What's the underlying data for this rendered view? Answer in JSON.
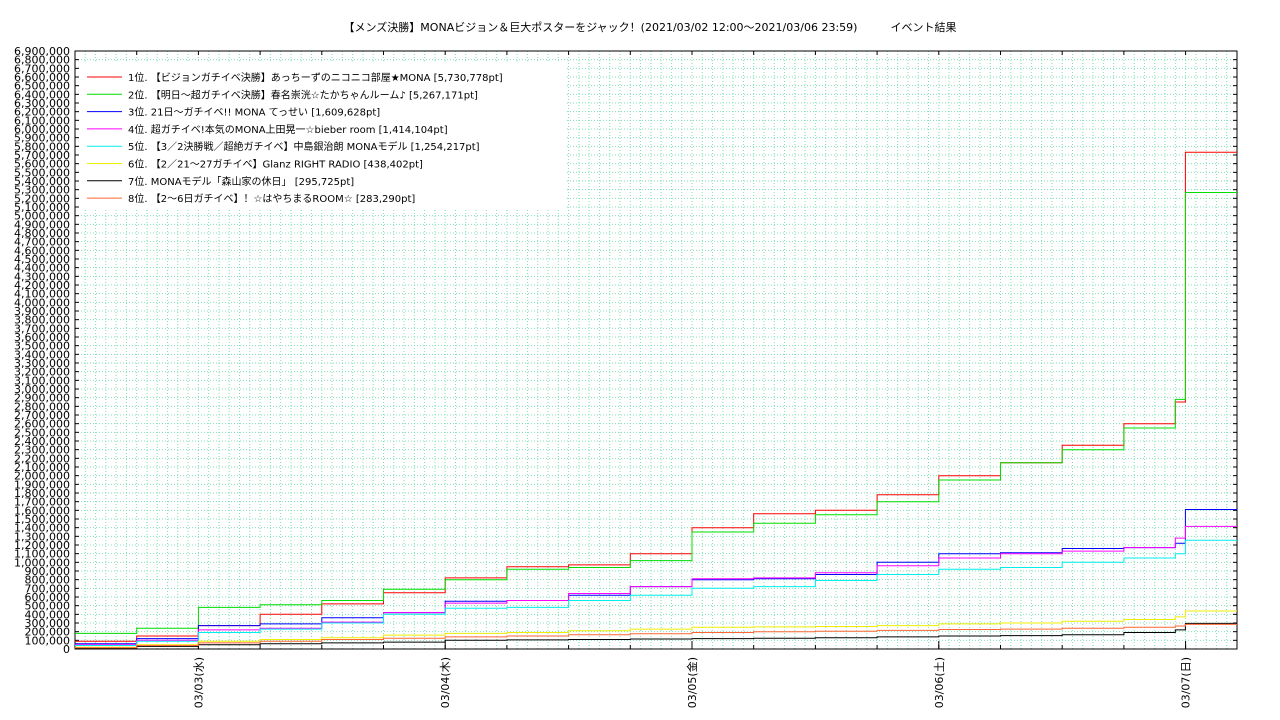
{
  "chart_data": {
    "type": "line",
    "title": "【メンズ決勝】MONAビジョン＆巨大ポスターをジャック！(2021/03/02 12:00〜2021/03/06 23:59)　　　イベント結果",
    "xlabel": "",
    "ylabel": "",
    "x_range": [
      "2021/03/02 12:00",
      "2021/03/07 05:00"
    ],
    "ylim": [
      0,
      6900000
    ],
    "y_ticks": [
      "0",
      "100,000",
      "200,000",
      "300,000",
      "400,000",
      "500,000",
      "600,000",
      "700,000",
      "800,000",
      "900,000",
      "1,000,000",
      "1,100,000",
      "1,200,000",
      "1,300,000",
      "1,400,000",
      "1,500,000",
      "1,600,000",
      "1,700,000",
      "1,800,000",
      "1,900,000",
      "2,000,000",
      "2,100,000",
      "2,200,000",
      "2,300,000",
      "2,400,000",
      "2,500,000",
      "2,600,000",
      "2,700,000",
      "2,800,000",
      "2,900,000",
      "3,000,000",
      "3,100,000",
      "3,200,000",
      "3,300,000",
      "3,400,000",
      "3,500,000",
      "3,600,000",
      "3,700,000",
      "3,800,000",
      "3,900,000",
      "4,000,000",
      "4,100,000",
      "4,200,000",
      "4,300,000",
      "4,400,000",
      "4,500,000",
      "4,600,000",
      "4,700,000",
      "4,800,000",
      "4,900,000",
      "5,000,000",
      "5,100,000",
      "5,200,000",
      "5,300,000",
      "5,400,000",
      "5,500,000",
      "5,600,000",
      "5,700,000",
      "5,800,000",
      "5,900,000",
      "6,000,000",
      "6,100,000",
      "6,200,000",
      "6,300,000",
      "6,400,000",
      "6,500,000",
      "6,600,000",
      "6,700,000",
      "6,800,000",
      "6,900,000"
    ],
    "x_ticks": [
      {
        "label": "03/03(水)",
        "x": "2021/03/03 00:00"
      },
      {
        "label": "03/04(木)",
        "x": "2021/03/04 00:00"
      },
      {
        "label": "03/05(金)",
        "x": "2021/03/05 00:00"
      },
      {
        "label": "03/06(土)",
        "x": "2021/03/06 00:00"
      },
      {
        "label": "03/07(日)",
        "x": "2021/03/07 00:00"
      }
    ],
    "grid": true,
    "legend_position": "top-left",
    "series": [
      {
        "name": "1位. 【ビジョンガチイベ決勝】あっちーずのニコニコ部屋★MONA [5,730,778pt]",
        "color": "#ff0000",
        "points": [
          [
            "2021/03/02 12:00",
            90000
          ],
          [
            "2021/03/02 18:00",
            150000
          ],
          [
            "2021/03/03 00:00",
            270000
          ],
          [
            "2021/03/03 06:00",
            400000
          ],
          [
            "2021/03/03 12:00",
            520000
          ],
          [
            "2021/03/03 18:00",
            650000
          ],
          [
            "2021/03/04 00:00",
            820000
          ],
          [
            "2021/03/04 06:00",
            950000
          ],
          [
            "2021/03/04 12:00",
            970000
          ],
          [
            "2021/03/04 18:00",
            1100000
          ],
          [
            "2021/03/05 00:00",
            1400000
          ],
          [
            "2021/03/05 06:00",
            1560000
          ],
          [
            "2021/03/05 12:00",
            1600000
          ],
          [
            "2021/03/05 18:00",
            1780000
          ],
          [
            "2021/03/06 00:00",
            2000000
          ],
          [
            "2021/03/06 06:00",
            2150000
          ],
          [
            "2021/03/06 12:00",
            2350000
          ],
          [
            "2021/03/06 18:00",
            2600000
          ],
          [
            "2021/03/06 23:00",
            2850000
          ],
          [
            "2021/03/06 23:59",
            5730778
          ],
          [
            "2021/03/07 05:00",
            5730778
          ]
        ]
      },
      {
        "name": "2位. 【明日〜超ガチイベ決勝】春名崇洸☆たかちゃんルーム♪ [5,267,171pt]",
        "color": "#00dd00",
        "points": [
          [
            "2021/03/02 12:00",
            180000
          ],
          [
            "2021/03/02 18:00",
            240000
          ],
          [
            "2021/03/03 00:00",
            480000
          ],
          [
            "2021/03/03 06:00",
            510000
          ],
          [
            "2021/03/03 12:00",
            560000
          ],
          [
            "2021/03/03 18:00",
            690000
          ],
          [
            "2021/03/04 00:00",
            800000
          ],
          [
            "2021/03/04 06:00",
            920000
          ],
          [
            "2021/03/04 12:00",
            940000
          ],
          [
            "2021/03/04 18:00",
            1020000
          ],
          [
            "2021/03/05 00:00",
            1350000
          ],
          [
            "2021/03/05 06:00",
            1450000
          ],
          [
            "2021/03/05 12:00",
            1550000
          ],
          [
            "2021/03/05 18:00",
            1700000
          ],
          [
            "2021/03/06 00:00",
            1950000
          ],
          [
            "2021/03/06 06:00",
            2150000
          ],
          [
            "2021/03/06 12:00",
            2300000
          ],
          [
            "2021/03/06 18:00",
            2550000
          ],
          [
            "2021/03/06 23:00",
            2880000
          ],
          [
            "2021/03/06 23:59",
            5267171
          ],
          [
            "2021/03/07 05:00",
            5267171
          ]
        ]
      },
      {
        "name": "3位. 21日〜ガチイベ!! MONA てっせい [1,609,628pt]",
        "color": "#0000ff",
        "points": [
          [
            "2021/03/02 12:00",
            60000
          ],
          [
            "2021/03/02 18:00",
            120000
          ],
          [
            "2021/03/03 00:00",
            270000
          ],
          [
            "2021/03/03 06:00",
            290000
          ],
          [
            "2021/03/03 12:00",
            360000
          ],
          [
            "2021/03/03 18:00",
            420000
          ],
          [
            "2021/03/04 00:00",
            550000
          ],
          [
            "2021/03/04 06:00",
            560000
          ],
          [
            "2021/03/04 12:00",
            620000
          ],
          [
            "2021/03/04 18:00",
            720000
          ],
          [
            "2021/03/05 00:00",
            800000
          ],
          [
            "2021/03/05 06:00",
            810000
          ],
          [
            "2021/03/05 12:00",
            860000
          ],
          [
            "2021/03/05 18:00",
            1000000
          ],
          [
            "2021/03/06 00:00",
            1100000
          ],
          [
            "2021/03/06 06:00",
            1110000
          ],
          [
            "2021/03/06 12:00",
            1160000
          ],
          [
            "2021/03/06 18:00",
            1170000
          ],
          [
            "2021/03/06 23:00",
            1220000
          ],
          [
            "2021/03/06 23:59",
            1609628
          ],
          [
            "2021/03/07 05:00",
            1609628
          ]
        ]
      },
      {
        "name": "4位. 超ガチイベ!本気のMONA上田晃一☆bieber room [1,414,104pt]",
        "color": "#ff00ff",
        "points": [
          [
            "2021/03/02 12:00",
            50000
          ],
          [
            "2021/03/02 18:00",
            100000
          ],
          [
            "2021/03/03 00:00",
            220000
          ],
          [
            "2021/03/03 06:00",
            240000
          ],
          [
            "2021/03/03 12:00",
            310000
          ],
          [
            "2021/03/03 18:00",
            420000
          ],
          [
            "2021/03/04 00:00",
            530000
          ],
          [
            "2021/03/04 06:00",
            560000
          ],
          [
            "2021/03/04 12:00",
            640000
          ],
          [
            "2021/03/04 18:00",
            720000
          ],
          [
            "2021/03/05 00:00",
            810000
          ],
          [
            "2021/03/05 06:00",
            820000
          ],
          [
            "2021/03/05 12:00",
            880000
          ],
          [
            "2021/03/05 18:00",
            960000
          ],
          [
            "2021/03/06 00:00",
            1050000
          ],
          [
            "2021/03/06 06:00",
            1100000
          ],
          [
            "2021/03/06 12:00",
            1130000
          ],
          [
            "2021/03/06 18:00",
            1170000
          ],
          [
            "2021/03/06 23:00",
            1280000
          ],
          [
            "2021/03/06 23:59",
            1414104
          ],
          [
            "2021/03/07 05:00",
            1414104
          ]
        ]
      },
      {
        "name": "5位. 【3／2決勝戦／超絶ガチイベ】中島銀治朗 MONAモデル [1,254,217pt]",
        "color": "#00eeee",
        "points": [
          [
            "2021/03/02 12:00",
            40000
          ],
          [
            "2021/03/02 18:00",
            90000
          ],
          [
            "2021/03/03 00:00",
            190000
          ],
          [
            "2021/03/03 06:00",
            230000
          ],
          [
            "2021/03/03 12:00",
            300000
          ],
          [
            "2021/03/03 18:00",
            400000
          ],
          [
            "2021/03/04 00:00",
            470000
          ],
          [
            "2021/03/04 06:00",
            480000
          ],
          [
            "2021/03/04 12:00",
            560000
          ],
          [
            "2021/03/04 18:00",
            620000
          ],
          [
            "2021/03/05 00:00",
            700000
          ],
          [
            "2021/03/05 06:00",
            720000
          ],
          [
            "2021/03/05 12:00",
            790000
          ],
          [
            "2021/03/05 18:00",
            860000
          ],
          [
            "2021/03/06 00:00",
            920000
          ],
          [
            "2021/03/06 06:00",
            940000
          ],
          [
            "2021/03/06 12:00",
            1000000
          ],
          [
            "2021/03/06 18:00",
            1050000
          ],
          [
            "2021/03/06 23:00",
            1100000
          ],
          [
            "2021/03/06 23:59",
            1254217
          ],
          [
            "2021/03/07 05:00",
            1254217
          ]
        ]
      },
      {
        "name": "6位. 【2／21〜27ガチイベ】Glanz RIGHT RADIO [438,402pt]",
        "color": "#eeee00",
        "points": [
          [
            "2021/03/02 12:00",
            20000
          ],
          [
            "2021/03/02 18:00",
            50000
          ],
          [
            "2021/03/03 00:00",
            90000
          ],
          [
            "2021/03/03 06:00",
            110000
          ],
          [
            "2021/03/03 12:00",
            130000
          ],
          [
            "2021/03/03 18:00",
            160000
          ],
          [
            "2021/03/04 00:00",
            180000
          ],
          [
            "2021/03/04 06:00",
            190000
          ],
          [
            "2021/03/04 12:00",
            210000
          ],
          [
            "2021/03/04 18:00",
            230000
          ],
          [
            "2021/03/05 00:00",
            250000
          ],
          [
            "2021/03/05 06:00",
            255000
          ],
          [
            "2021/03/05 12:00",
            260000
          ],
          [
            "2021/03/05 18:00",
            270000
          ],
          [
            "2021/03/06 00:00",
            290000
          ],
          [
            "2021/03/06 06:00",
            300000
          ],
          [
            "2021/03/06 12:00",
            320000
          ],
          [
            "2021/03/06 18:00",
            340000
          ],
          [
            "2021/03/06 23:00",
            370000
          ],
          [
            "2021/03/06 23:59",
            438402
          ],
          [
            "2021/03/07 05:00",
            438402
          ]
        ]
      },
      {
        "name": "7位. MONAモデル「森山家の休日」 [295,725pt]",
        "color": "#000000",
        "points": [
          [
            "2021/03/02 12:00",
            10000
          ],
          [
            "2021/03/02 18:00",
            30000
          ],
          [
            "2021/03/03 00:00",
            50000
          ],
          [
            "2021/03/03 06:00",
            60000
          ],
          [
            "2021/03/03 12:00",
            70000
          ],
          [
            "2021/03/03 18:00",
            80000
          ],
          [
            "2021/03/04 00:00",
            100000
          ],
          [
            "2021/03/04 06:00",
            105000
          ],
          [
            "2021/03/04 12:00",
            110000
          ],
          [
            "2021/03/04 18:00",
            115000
          ],
          [
            "2021/03/05 00:00",
            120000
          ],
          [
            "2021/03/05 06:00",
            125000
          ],
          [
            "2021/03/05 12:00",
            130000
          ],
          [
            "2021/03/05 18:00",
            140000
          ],
          [
            "2021/03/06 00:00",
            150000
          ],
          [
            "2021/03/06 06:00",
            155000
          ],
          [
            "2021/03/06 12:00",
            165000
          ],
          [
            "2021/03/06 18:00",
            190000
          ],
          [
            "2021/03/06 23:00",
            220000
          ],
          [
            "2021/03/06 23:59",
            295725
          ],
          [
            "2021/03/07 05:00",
            295725
          ]
        ]
      },
      {
        "name": "8位. 【2〜6日ガチイベ】！☆はやちまるROOM☆ [283,290pt]",
        "color": "#ff6633",
        "points": [
          [
            "2021/03/02 12:00",
            15000
          ],
          [
            "2021/03/02 18:00",
            40000
          ],
          [
            "2021/03/03 00:00",
            70000
          ],
          [
            "2021/03/03 06:00",
            90000
          ],
          [
            "2021/03/03 12:00",
            110000
          ],
          [
            "2021/03/03 18:00",
            125000
          ],
          [
            "2021/03/04 00:00",
            140000
          ],
          [
            "2021/03/04 06:00",
            150000
          ],
          [
            "2021/03/04 12:00",
            165000
          ],
          [
            "2021/03/04 18:00",
            175000
          ],
          [
            "2021/03/05 00:00",
            190000
          ],
          [
            "2021/03/05 06:00",
            200000
          ],
          [
            "2021/03/05 12:00",
            205000
          ],
          [
            "2021/03/05 18:00",
            215000
          ],
          [
            "2021/03/06 00:00",
            225000
          ],
          [
            "2021/03/06 06:00",
            230000
          ],
          [
            "2021/03/06 12:00",
            240000
          ],
          [
            "2021/03/06 18:00",
            250000
          ],
          [
            "2021/03/06 23:00",
            265000
          ],
          [
            "2021/03/06 23:59",
            283290
          ],
          [
            "2021/03/07 05:00",
            283290
          ]
        ]
      }
    ]
  }
}
